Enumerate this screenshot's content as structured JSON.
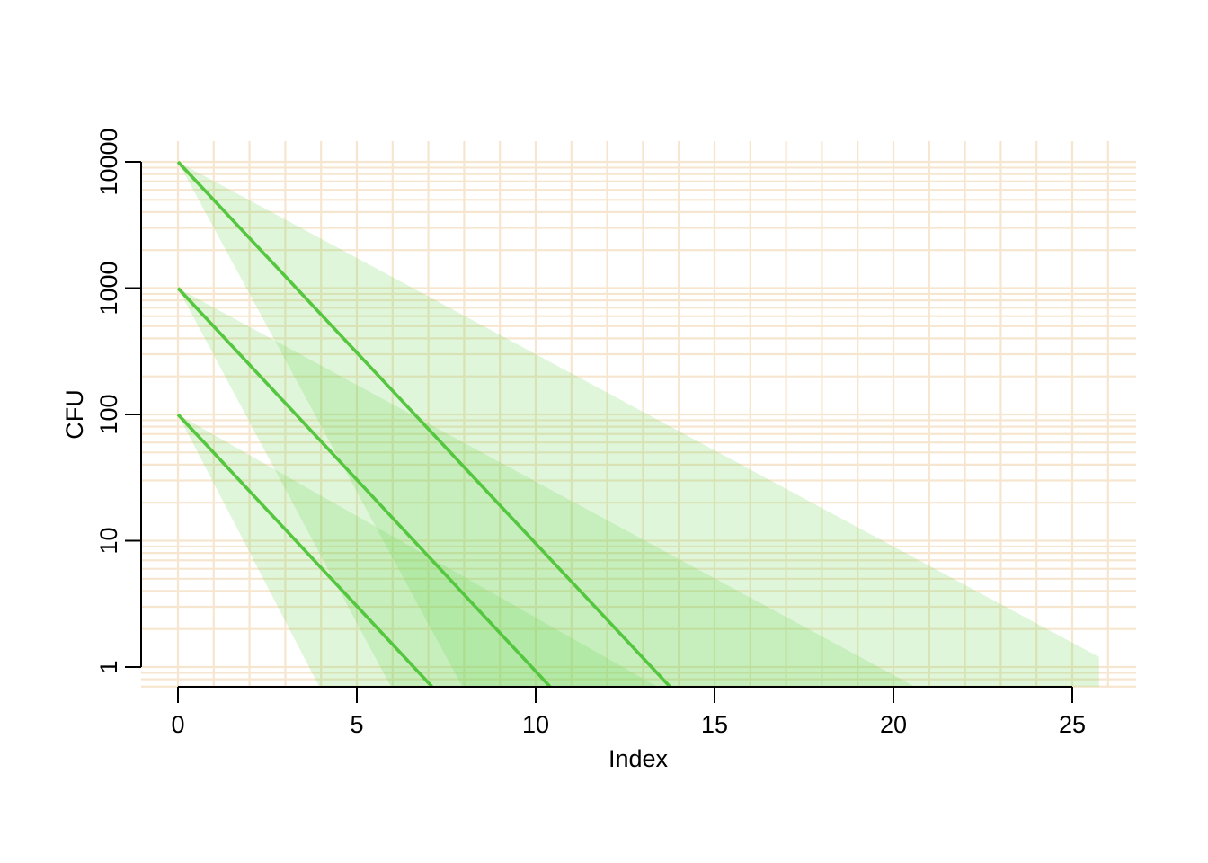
{
  "chart_data": {
    "type": "line",
    "xlabel": "Index",
    "ylabel": "CFU",
    "x_ticks": [
      0,
      5,
      10,
      15,
      20,
      25
    ],
    "y_ticks": [
      1,
      10,
      100,
      1000,
      10000
    ],
    "y_tick_labels": [
      "1",
      "10",
      "100",
      "1000",
      "10000"
    ],
    "y_scale": "log",
    "xlim": [
      -0.5,
      26.7
    ],
    "ylim": [
      0.7,
      15000
    ],
    "grid": true,
    "series": [
      {
        "line": [
          [
            0,
            10000
          ],
          [
            13.75,
            0.7
          ]
        ],
        "band": [
          [
            0,
            10000
          ],
          [
            25.75,
            1.2
          ],
          [
            25.75,
            0.7
          ],
          [
            7.95,
            0.7
          ]
        ]
      },
      {
        "line": [
          [
            0,
            1000
          ],
          [
            10.4,
            0.7
          ]
        ],
        "band": [
          [
            0,
            1000
          ],
          [
            20.6,
            0.7
          ],
          [
            5.95,
            0.7
          ]
        ]
      },
      {
        "line": [
          [
            0,
            100
          ],
          [
            7.1,
            0.7
          ]
        ],
        "band": [
          [
            0,
            100
          ],
          [
            13.4,
            0.7
          ],
          [
            3.95,
            0.7
          ]
        ]
      }
    ],
    "colors": {
      "line": "#55c63f",
      "band": "#6fd456",
      "grid": "#f7e6cf",
      "axis": "#000000"
    }
  }
}
